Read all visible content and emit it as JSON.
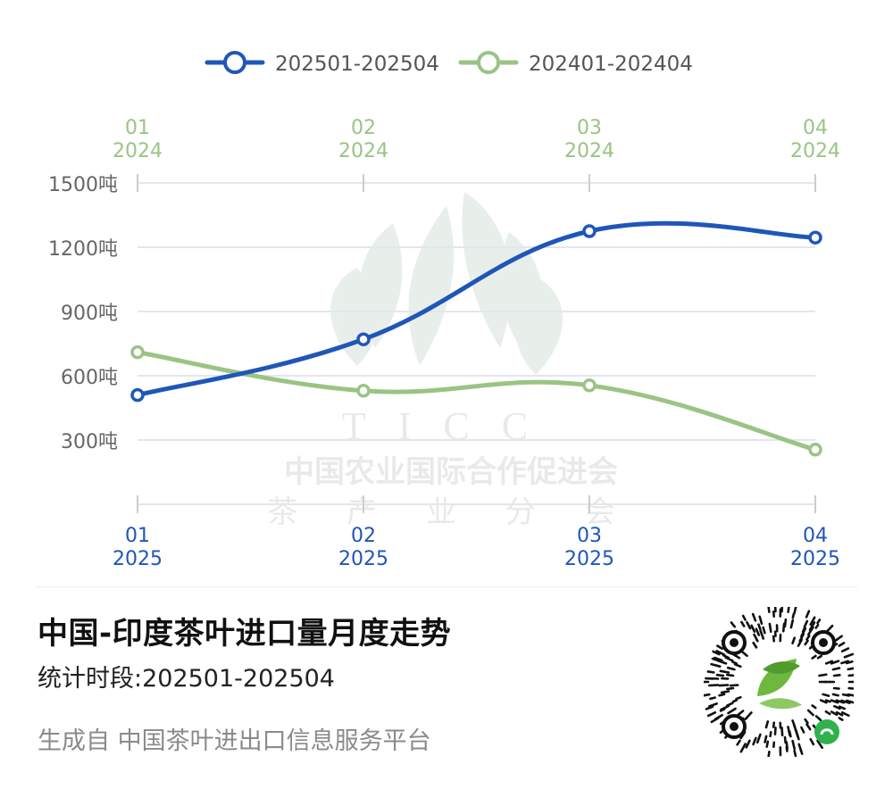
{
  "chart_data": {
    "type": "line",
    "categories": [
      "01",
      "02",
      "03",
      "04"
    ],
    "top_axis_year": "2024",
    "bottom_axis_year": "2025",
    "y_ticks": [
      "1500吨",
      "1200吨",
      "900吨",
      "600吨",
      "300吨"
    ],
    "y_tick_values": [
      1500,
      1200,
      900,
      600,
      300
    ],
    "y_unit": "吨",
    "ylim": [
      0,
      1500
    ],
    "grid": true,
    "legend_position": "top",
    "series": [
      {
        "name": "202501-202504",
        "values": [
          510,
          770,
          1275,
          1245
        ],
        "color": "#1f56b8",
        "axis": "bottom"
      },
      {
        "name": "202401-202404",
        "values": [
          710,
          530,
          555,
          255
        ],
        "color": "#9ac485",
        "axis": "top"
      }
    ]
  },
  "watermark": {
    "text": "TICC",
    "line1": "中国农业国际合作促进会",
    "line2": "茶 产 业 分 会"
  },
  "footer": {
    "title": "中国-印度茶叶进口量月度走势",
    "period": "统计时段:202501-202504",
    "source": "生成自 中国茶叶进出口信息服务平台"
  },
  "colors": {
    "series_2025": "#1f56b8",
    "series_2024": "#9ac485",
    "grid": "#e3e6ef",
    "axis_text": "#666666"
  }
}
